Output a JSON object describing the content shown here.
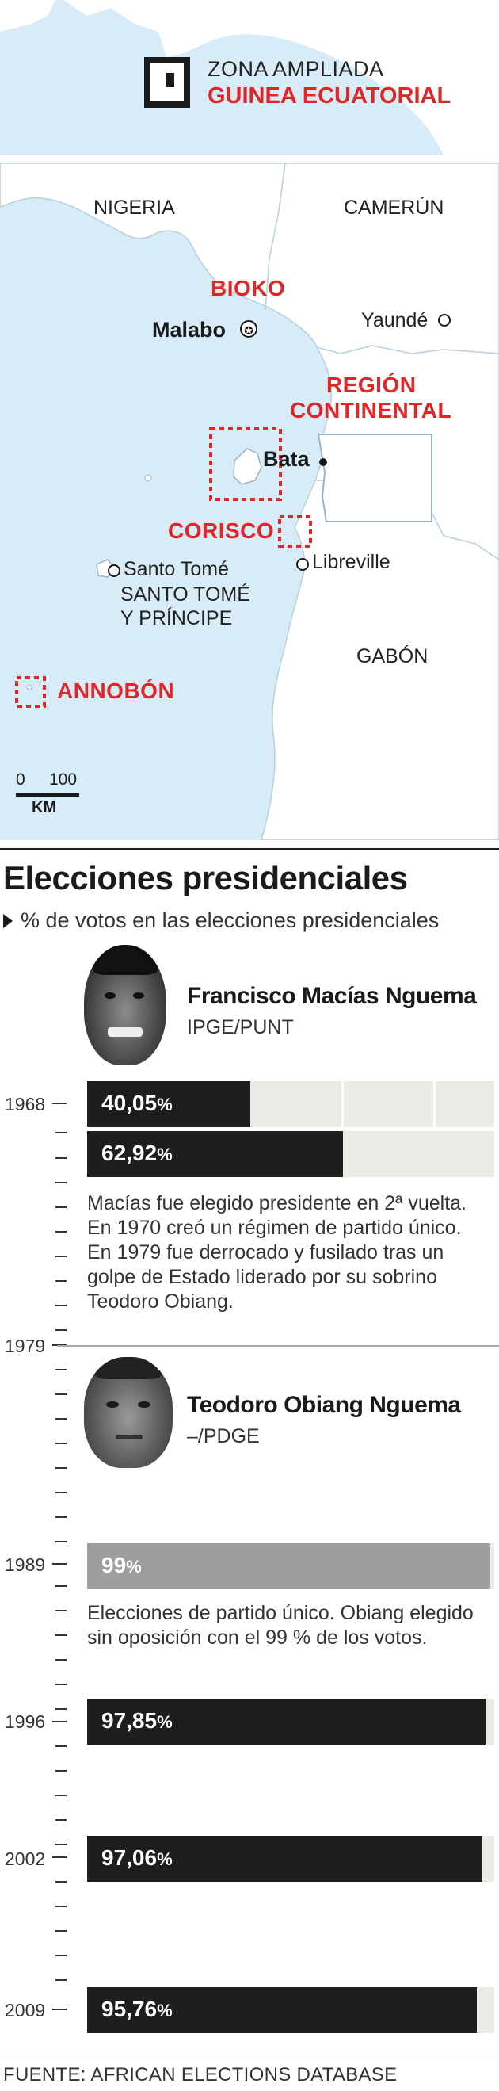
{
  "map": {
    "inset_line1": "ZONA AMPLIADA",
    "inset_line2": "GUINEA ECUATORIAL",
    "countries": {
      "nigeria": "NIGERIA",
      "camerun": "CAMERÚN",
      "gabon": "GABÓN",
      "stp_line1": "SANTO TOMÉ",
      "stp_line2": "Y PRÍNCIPE"
    },
    "cities": {
      "malabo": "Malabo",
      "yaunde": "Yaundé",
      "bata": "Bata",
      "libreville": "Libreville",
      "santo_tome": "Santo Tomé"
    },
    "regions": {
      "bioko": "BIOKO",
      "region_line1": "REGIÓN",
      "region_line2": "CONTINENTAL",
      "corisco": "CORISCO",
      "annobon": "ANNOBÓN"
    },
    "scale": {
      "zero": "0",
      "hundred": "100",
      "unit": "KM"
    },
    "colors": {
      "sea": "#d8ecf8",
      "land": "#ffffff",
      "highlight": "#e02626"
    }
  },
  "header": {
    "title": "Elecciones presidenciales",
    "subtitle": "% de votos en las elecciones presidenciales"
  },
  "candidates": [
    {
      "name": "Francisco Macías Nguema",
      "party": "IPGE/PUNT",
      "note": [
        "Macías fue elegido presidente en 2ª vuelta.",
        "En 1970 creó un régimen de partido único.",
        "En 1979 fue derrocado y fusilado tras un",
        "golpe de Estado liderado por su sobrino",
        "Teodoro Obiang."
      ]
    },
    {
      "name": "Teodoro Obiang Nguema",
      "party": "–/PDGE",
      "note": [
        "Elecciones de partido único. Obiang elegido",
        "sin oposición con el 99 % de los votos."
      ]
    }
  ],
  "timeline_years": [
    "1968",
    "1979",
    "1989",
    "1996",
    "2002",
    "2009"
  ],
  "chart_data": {
    "type": "bar",
    "title": "Elecciones presidenciales",
    "subtitle": "% de votos en las elecciones presidenciales",
    "ylim": [
      0,
      100
    ],
    "bars": [
      {
        "year": "1968",
        "round": 1,
        "label": "40,05",
        "value": 40.05,
        "color": "#1e1e1e",
        "candidate": "Francisco Macías Nguema"
      },
      {
        "year": "1968",
        "round": 2,
        "label": "62,92",
        "value": 62.92,
        "color": "#1e1e1e",
        "candidate": "Francisco Macías Nguema"
      },
      {
        "year": "1989",
        "label": "99",
        "value": 99,
        "color": "#9e9e9e",
        "candidate": "Teodoro Obiang Nguema"
      },
      {
        "year": "1996",
        "label": "97,85",
        "value": 97.85,
        "color": "#1e1e1e",
        "candidate": "Teodoro Obiang Nguema"
      },
      {
        "year": "2002",
        "label": "97,06",
        "value": 97.06,
        "color": "#1e1e1e",
        "candidate": "Teodoro Obiang Nguema"
      },
      {
        "year": "2009",
        "label": "95,76",
        "value": 95.76,
        "color": "#1e1e1e",
        "candidate": "Teodoro Obiang Nguema"
      }
    ],
    "pct_symbol": "%"
  },
  "source": "FUENTE: AFRICAN ELECTIONS DATABASE"
}
